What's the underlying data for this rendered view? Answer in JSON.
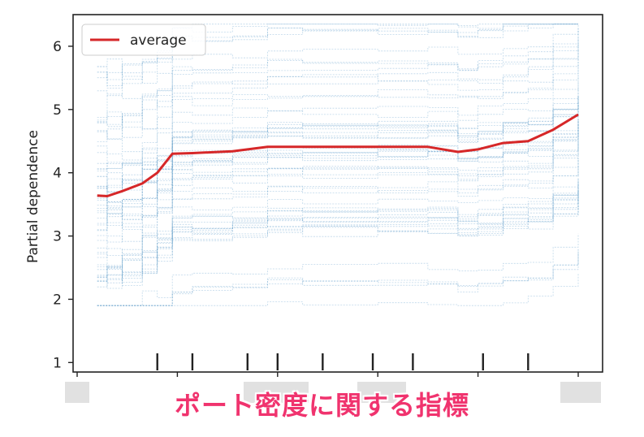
{
  "chart_data": {
    "type": "line",
    "title": "",
    "xlabel": "",
    "ylabel": "Partial dependence",
    "ylim": [
      0.85,
      6.5
    ],
    "xlim": [
      0,
      1
    ],
    "y_ticks": [
      1,
      2,
      3,
      4,
      5,
      6
    ],
    "legend": {
      "placement": "top-left",
      "entries": [
        "average"
      ]
    },
    "colors": {
      "average": "#d62728",
      "ice": "#4a90c2"
    },
    "x": [
      0.04,
      0.06,
      0.09,
      0.13,
      0.16,
      0.19,
      0.23,
      0.31,
      0.38,
      0.45,
      0.6,
      0.7,
      0.76,
      0.8,
      0.85,
      0.9,
      0.95,
      1.0
    ],
    "series": [
      {
        "name": "average",
        "values": [
          3.64,
          3.63,
          3.71,
          3.83,
          4.0,
          4.3,
          4.31,
          4.34,
          4.41,
          4.41,
          4.41,
          4.41,
          4.33,
          4.37,
          4.47,
          4.5,
          4.68,
          4.92
        ]
      }
    ],
    "ice_curve_count": 60,
    "rug_ticks": [
      0.16,
      0.23,
      0.34,
      0.4,
      0.49,
      0.59,
      0.67,
      0.81,
      0.9
    ],
    "ice_band": {
      "upper": [
        5.3,
        5.5,
        6.1,
        6.3
      ],
      "lower": [
        1.9,
        2.4,
        2.8,
        2.9
      ]
    }
  },
  "caption": "ポート密度に関する指標"
}
